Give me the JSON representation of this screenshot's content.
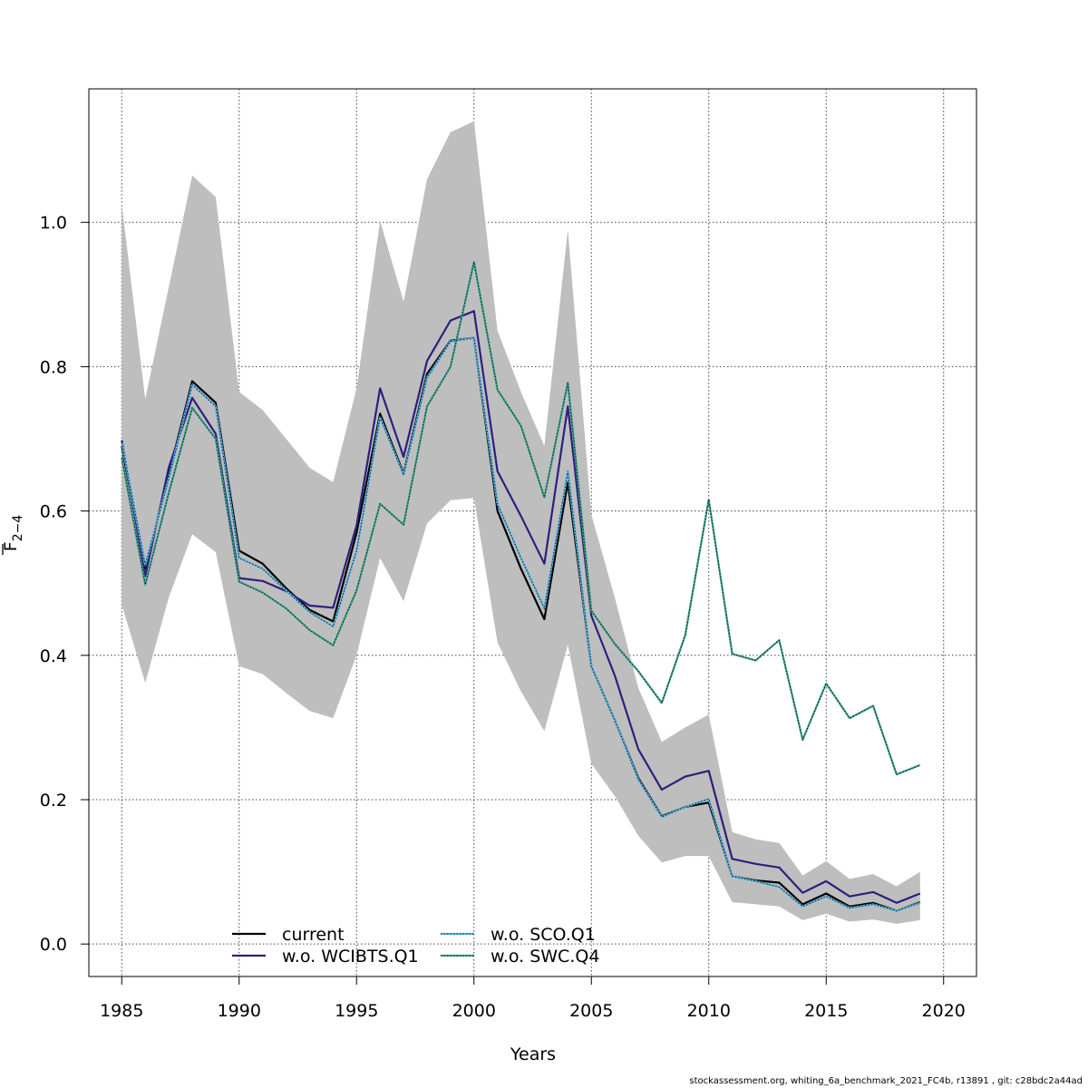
{
  "chart_data": {
    "type": "line",
    "xlabel": "Years",
    "ylabel_main": "F",
    "ylabel_sub": "2−4",
    "xlim": [
      1983.6,
      2021.4
    ],
    "ylim": [
      -0.045,
      1.185
    ],
    "xticks": [
      1985,
      1990,
      1995,
      2000,
      2005,
      2010,
      2015,
      2020
    ],
    "yticks": [
      0.0,
      0.2,
      0.4,
      0.6,
      0.8,
      1.0
    ],
    "ytick_labels": [
      "0.0",
      "0.2",
      "0.4",
      "0.6",
      "0.8",
      "1.0"
    ],
    "grid": true,
    "legend_position": "bottom-center",
    "x": [
      1985,
      1986,
      1987,
      1988,
      1989,
      1990,
      1991,
      1992,
      1993,
      1994,
      1995,
      1996,
      1997,
      1998,
      1999,
      2000,
      2001,
      2002,
      2003,
      2004,
      2005,
      2006,
      2007,
      2008,
      2009,
      2010,
      2011,
      2012,
      2013,
      2014,
      2015,
      2016,
      2017,
      2018,
      2019
    ],
    "band": {
      "fill": "#bebebe",
      "upper": [
        1.025,
        0.755,
        0.91,
        1.065,
        1.035,
        0.765,
        0.74,
        0.7,
        0.66,
        0.64,
        0.77,
        1.002,
        0.89,
        1.06,
        1.125,
        1.14,
        0.85,
        0.765,
        0.69,
        0.99,
        0.595,
        0.48,
        0.355,
        0.28,
        0.3,
        0.318,
        0.155,
        0.145,
        0.14,
        0.095,
        0.115,
        0.09,
        0.097,
        0.08,
        0.1
      ],
      "lower": [
        0.47,
        0.362,
        0.48,
        0.568,
        0.543,
        0.385,
        0.374,
        0.348,
        0.323,
        0.313,
        0.4,
        0.535,
        0.475,
        0.583,
        0.615,
        0.618,
        0.418,
        0.35,
        0.295,
        0.415,
        0.25,
        0.205,
        0.15,
        0.113,
        0.122,
        0.122,
        0.058,
        0.055,
        0.052,
        0.033,
        0.042,
        0.031,
        0.034,
        0.028,
        0.033
      ]
    },
    "series": [
      {
        "name": "current",
        "color": "#000000",
        "dotted": false,
        "values": [
          0.69,
          0.52,
          0.65,
          0.78,
          0.75,
          0.545,
          0.527,
          0.493,
          0.463,
          0.447,
          0.57,
          0.735,
          0.652,
          0.79,
          0.836,
          0.84,
          0.6,
          0.52,
          0.45,
          0.64,
          0.385,
          0.31,
          0.23,
          0.177,
          0.19,
          0.196,
          0.094,
          0.088,
          0.085,
          0.055,
          0.07,
          0.052,
          0.057,
          0.046,
          0.058
        ]
      },
      {
        "name": "w.o. WCIBTS.Q1",
        "color": "#2e1e7e",
        "dotted": false,
        "values": [
          0.698,
          0.51,
          0.66,
          0.757,
          0.707,
          0.507,
          0.503,
          0.489,
          0.469,
          0.466,
          0.58,
          0.77,
          0.675,
          0.808,
          0.864,
          0.877,
          0.655,
          0.593,
          0.527,
          0.745,
          0.455,
          0.372,
          0.27,
          0.214,
          0.232,
          0.24,
          0.118,
          0.111,
          0.106,
          0.071,
          0.087,
          0.066,
          0.072,
          0.057,
          0.07
        ]
      },
      {
        "name": "w.o. SCO.Q1",
        "color": "#5bb8e8",
        "dotted": true,
        "values": [
          0.695,
          0.525,
          0.645,
          0.775,
          0.745,
          0.535,
          0.52,
          0.49,
          0.46,
          0.44,
          0.545,
          0.73,
          0.65,
          0.785,
          0.835,
          0.84,
          0.61,
          0.535,
          0.465,
          0.655,
          0.385,
          0.31,
          0.228,
          0.176,
          0.19,
          0.201,
          0.094,
          0.087,
          0.079,
          0.052,
          0.066,
          0.05,
          0.055,
          0.046,
          0.057
        ]
      },
      {
        "name": "w.o. SWC.Q4",
        "color": "#3aa38f",
        "dotted": true,
        "values": [
          0.674,
          0.498,
          0.625,
          0.743,
          0.7,
          0.502,
          0.487,
          0.465,
          0.435,
          0.414,
          0.49,
          0.61,
          0.581,
          0.745,
          0.8,
          0.945,
          0.768,
          0.718,
          0.619,
          0.778,
          0.462,
          0.416,
          0.378,
          0.334,
          0.428,
          0.616,
          0.402,
          0.393,
          0.421,
          0.283,
          0.361,
          0.313,
          0.33,
          0.235,
          0.248
        ]
      }
    ]
  },
  "footer": "stockassessment.org, whiting_6a_benchmark_2021_FC4b, r13891 , git: c28bdc2a44ad"
}
